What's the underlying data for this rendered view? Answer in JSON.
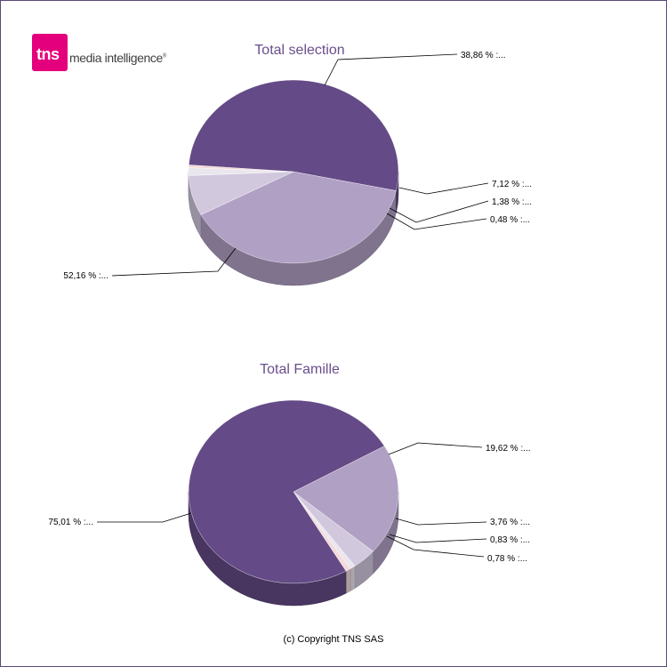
{
  "brand": {
    "logo_mark": "tns",
    "logo_text": "media intelligence",
    "logo_reg": "®",
    "color": "#e4007c"
  },
  "copyright": "(c) Copyright TNS SAS",
  "chart_data": [
    {
      "type": "pie",
      "title": "Total selection",
      "slices": [
        {
          "value": 38.86,
          "label": "38,86 % :...",
          "color": "#b0a0c4"
        },
        {
          "value": 7.12,
          "label": "7,12 % :...",
          "color": "#d2c8de"
        },
        {
          "value": 1.38,
          "label": "1,38 % :...",
          "color": "#eae6ee"
        },
        {
          "value": 0.48,
          "label": "0,48 % :...",
          "color": "#f4dada"
        },
        {
          "value": 52.16,
          "label": "52,16 % :...",
          "color": "#644a86"
        }
      ]
    },
    {
      "type": "pie",
      "title": "Total Famille",
      "slices": [
        {
          "value": 19.62,
          "label": "19,62 % :...",
          "color": "#b0a0c4"
        },
        {
          "value": 3.76,
          "label": "3,76 % :...",
          "color": "#d2c8de"
        },
        {
          "value": 0.83,
          "label": "0,83 % :...",
          "color": "#eae6ee"
        },
        {
          "value": 0.78,
          "label": "0,78 % :...",
          "color": "#f4dada"
        },
        {
          "value": 75.01,
          "label": "75,01 % :...",
          "color": "#644a86"
        }
      ]
    }
  ]
}
